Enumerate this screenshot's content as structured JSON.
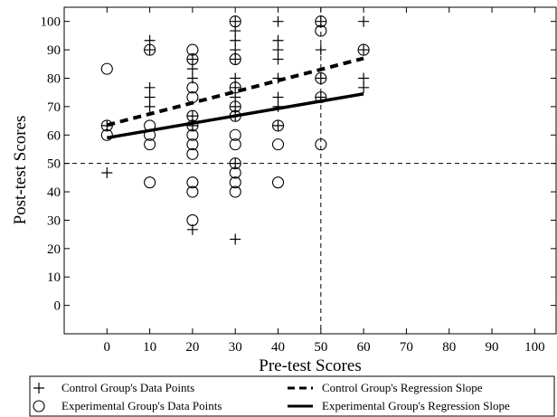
{
  "chart_data": {
    "type": "scatter",
    "xlabel": "Pre-test Scores",
    "ylabel": "Post-test Scores",
    "xlim": [
      -10,
      105
    ],
    "ylim": [
      -10,
      105
    ],
    "xticks": [
      0,
      10,
      20,
      30,
      40,
      50,
      60,
      70,
      80,
      90,
      100
    ],
    "yticks": [
      0,
      10,
      20,
      30,
      40,
      50,
      60,
      70,
      80,
      90,
      100
    ],
    "grid": false,
    "reference_lines": {
      "x": 50,
      "y": 50,
      "style": "dashed"
    },
    "series": [
      {
        "name": "Control Group's Data Points",
        "marker": "plus",
        "points": [
          [
            0,
            46.7
          ],
          [
            0,
            63.3
          ],
          [
            10,
            93.3
          ],
          [
            10,
            90
          ],
          [
            10,
            76.7
          ],
          [
            10,
            73.3
          ],
          [
            10,
            70
          ],
          [
            20,
            86.7
          ],
          [
            20,
            83.3
          ],
          [
            20,
            80
          ],
          [
            20,
            66.7
          ],
          [
            20,
            63.3
          ],
          [
            20,
            26.7
          ],
          [
            30,
            100
          ],
          [
            30,
            96.7
          ],
          [
            30,
            93.3
          ],
          [
            30,
            90
          ],
          [
            30,
            86.7
          ],
          [
            30,
            80
          ],
          [
            30,
            76.7
          ],
          [
            30,
            73.3
          ],
          [
            30,
            70
          ],
          [
            30,
            66.7
          ],
          [
            30,
            50
          ],
          [
            30,
            23.3
          ],
          [
            40,
            100
          ],
          [
            40,
            93.3
          ],
          [
            40,
            90
          ],
          [
            40,
            86.7
          ],
          [
            40,
            80
          ],
          [
            40,
            73.3
          ],
          [
            40,
            70
          ],
          [
            40,
            63.3
          ],
          [
            50,
            100
          ],
          [
            50,
            90
          ],
          [
            50,
            80
          ],
          [
            50,
            73.3
          ],
          [
            60,
            100
          ],
          [
            60,
            90
          ],
          [
            60,
            80
          ],
          [
            60,
            76.7
          ]
        ]
      },
      {
        "name": "Experimental Group's Data Points",
        "marker": "circle",
        "points": [
          [
            0,
            83.3
          ],
          [
            0,
            63.3
          ],
          [
            0,
            60
          ],
          [
            10,
            90
          ],
          [
            10,
            63.3
          ],
          [
            10,
            60
          ],
          [
            10,
            56.7
          ],
          [
            10,
            43.3
          ],
          [
            20,
            90
          ],
          [
            20,
            86.7
          ],
          [
            20,
            76.7
          ],
          [
            20,
            73.3
          ],
          [
            20,
            66.7
          ],
          [
            20,
            63.3
          ],
          [
            20,
            60
          ],
          [
            20,
            56.7
          ],
          [
            20,
            53.3
          ],
          [
            20,
            43.3
          ],
          [
            20,
            40
          ],
          [
            20,
            30
          ],
          [
            30,
            100
          ],
          [
            30,
            86.7
          ],
          [
            30,
            76.7
          ],
          [
            30,
            70
          ],
          [
            30,
            66.7
          ],
          [
            30,
            60
          ],
          [
            30,
            56.7
          ],
          [
            30,
            50
          ],
          [
            30,
            46.7
          ],
          [
            30,
            43.3
          ],
          [
            30,
            40
          ],
          [
            40,
            63.3
          ],
          [
            40,
            56.7
          ],
          [
            40,
            43.3
          ],
          [
            50,
            100
          ],
          [
            50,
            96.7
          ],
          [
            50,
            80
          ],
          [
            50,
            73.3
          ],
          [
            50,
            56.7
          ],
          [
            60,
            90
          ]
        ]
      },
      {
        "name": "Control Group's Regression Slope",
        "type": "line",
        "style": "dashed",
        "points": [
          [
            0,
            63.5
          ],
          [
            60,
            87
          ]
        ]
      },
      {
        "name": "Experimental Group's Regression Slope",
        "type": "line",
        "style": "solid",
        "points": [
          [
            0,
            59
          ],
          [
            60,
            74.5
          ]
        ]
      }
    ],
    "legend": {
      "placement": "bottom",
      "entries": [
        "Control Group's Data Points",
        "Control Group's Regression Slope",
        "Experimental Group's Data Points",
        "Experimental Group's Regression Slope"
      ]
    }
  }
}
